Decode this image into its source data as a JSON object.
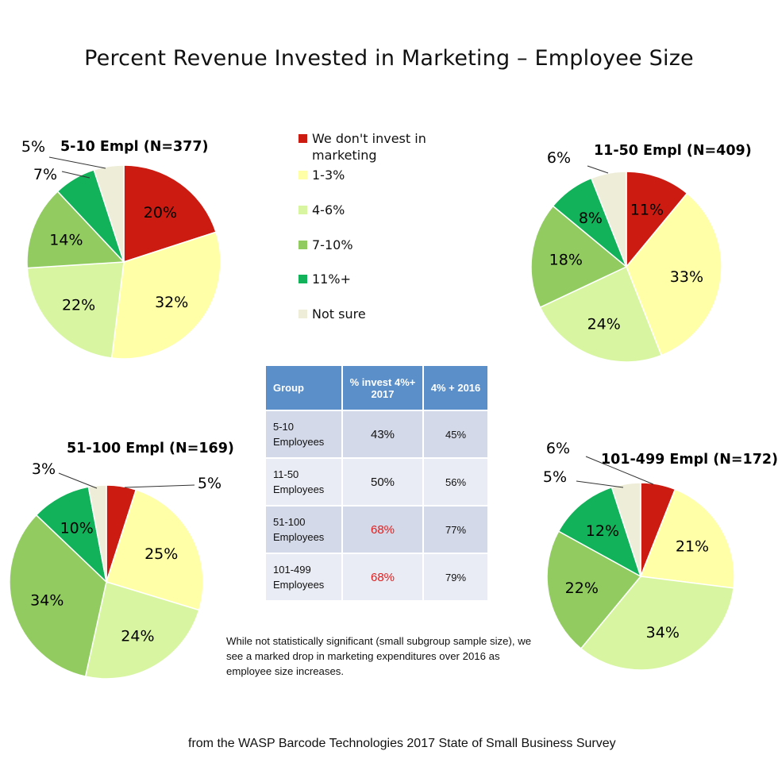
{
  "title": "Percent Revenue Invested in Marketing – Employee Size",
  "legend": [
    {
      "label": "We don't invest in marketing",
      "color": "#cc1b10"
    },
    {
      "label": "1-3%",
      "color": "#ffffa8"
    },
    {
      "label": "4-6%",
      "color": "#d8f5a2"
    },
    {
      "label": "7-10%",
      "color": "#92cc60"
    },
    {
      "label": "11%+",
      "color": "#12b25a"
    },
    {
      "label": "Not sure",
      "color": "#eeeed8"
    }
  ],
  "chart_data": [
    {
      "type": "pie",
      "title": "5-10 Empl (N=377)",
      "categories": [
        "We don't invest in marketing",
        "1-3%",
        "4-6%",
        "7-10%",
        "11%+",
        "Not sure"
      ],
      "values": [
        20,
        32,
        22,
        14,
        7,
        5
      ],
      "labels": [
        "20%",
        "32%",
        "22%",
        "14%",
        "7%",
        "5%"
      ]
    },
    {
      "type": "pie",
      "title": "11-50 Empl (N=409)",
      "categories": [
        "We don't invest in marketing",
        "1-3%",
        "4-6%",
        "7-10%",
        "11%+",
        "Not sure"
      ],
      "values": [
        11,
        33,
        24,
        18,
        8,
        6
      ],
      "labels": [
        "11%",
        "33%",
        "24%",
        "18%",
        "8%",
        "6%"
      ]
    },
    {
      "type": "pie",
      "title": "51-100 Empl (N=169)",
      "categories": [
        "We don't invest in marketing",
        "1-3%",
        "4-6%",
        "7-10%",
        "11%+",
        "Not sure"
      ],
      "values": [
        5,
        25,
        24,
        34,
        10,
        3
      ],
      "labels": [
        "5%",
        "25%",
        "24%",
        "34%",
        "10%",
        "3%"
      ]
    },
    {
      "type": "pie",
      "title": "101-499 Empl (N=172)",
      "categories": [
        "We don't invest in marketing",
        "1-3%",
        "4-6%",
        "7-10%",
        "11%+",
        "Not sure"
      ],
      "values": [
        6,
        21,
        34,
        22,
        12,
        5
      ],
      "labels": [
        "6%",
        "21%",
        "34%",
        "22%",
        "12%",
        "5%"
      ]
    }
  ],
  "table": {
    "headers": [
      "Group",
      "% invest 4%+ 2017",
      "4% + 2016"
    ],
    "rows": [
      {
        "group": "5-10 Employees",
        "v2017": "43%",
        "v2016": "45%",
        "highlight": false
      },
      {
        "group": "11-50 Employees",
        "v2017": "50%",
        "v2016": "56%",
        "highlight": false
      },
      {
        "group": "51-100 Employees",
        "v2017": "68%",
        "v2016": "77%",
        "highlight": true
      },
      {
        "group": "101-499 Employees",
        "v2017": "68%",
        "v2016": "79%",
        "highlight": true
      }
    ]
  },
  "footnote": "While not statistically significant (small subgroup sample size), we see a marked drop in marketing expenditures over 2016 as employee size increases.",
  "source": "from the WASP Barcode Technologies 2017 State of Small Business Survey"
}
